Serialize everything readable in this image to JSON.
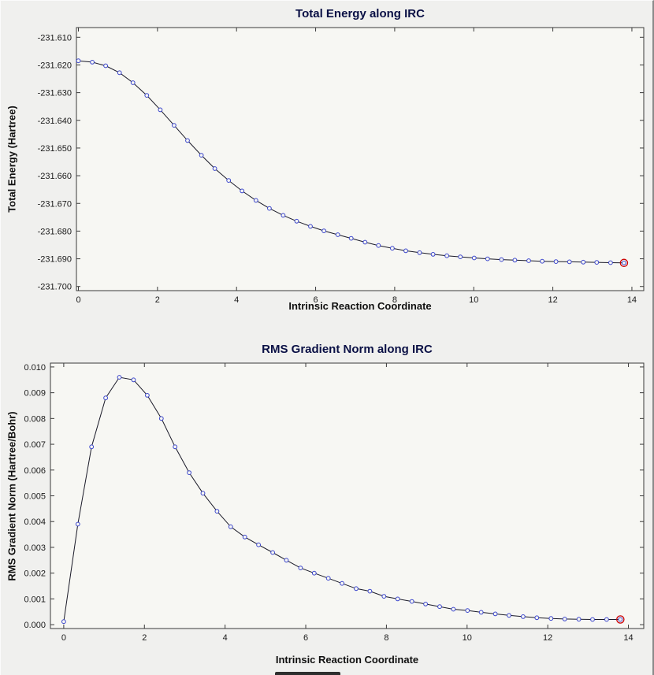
{
  "chart_data": [
    {
      "type": "line",
      "title": "Total Energy along IRC",
      "xlabel": "Intrinsic Reaction Coordinate",
      "ylabel": "Total Energy (Hartree)",
      "xlim": [
        -0.05,
        14.3
      ],
      "ylim": [
        -231.7015,
        -231.6065
      ],
      "xticks": [
        0,
        2,
        4,
        6,
        8,
        10,
        12,
        14
      ],
      "xtick_labels": [
        "0",
        "2",
        "4",
        "6",
        "8",
        "10",
        "12",
        "14"
      ],
      "yticks": [
        -231.61,
        -231.62,
        -231.63,
        -231.64,
        -231.65,
        -231.66,
        -231.67,
        -231.68,
        -231.69,
        -231.7
      ],
      "ytick_labels": [
        "-231.610",
        "-231.620",
        "-231.630",
        "-231.640",
        "-231.650",
        "-231.660",
        "-231.670",
        "-231.680",
        "-231.690",
        "-231.700"
      ],
      "grid": false,
      "legend": "none",
      "plot_bg": "#f7f7f3",
      "frame_color": "#3a3a3a",
      "line_color": "#1a1a28",
      "marker_color": "#3a45cc",
      "highlight_color": "#cc0000",
      "x": [
        0.0,
        0.35,
        0.69,
        1.04,
        1.38,
        1.73,
        2.07,
        2.42,
        2.76,
        3.11,
        3.45,
        3.8,
        4.14,
        4.49,
        4.83,
        5.18,
        5.52,
        5.87,
        6.21,
        6.56,
        6.9,
        7.25,
        7.59,
        7.94,
        8.28,
        8.63,
        8.97,
        9.32,
        9.66,
        10.01,
        10.35,
        10.7,
        11.04,
        11.39,
        11.73,
        12.08,
        12.42,
        12.77,
        13.11,
        13.46,
        13.8
      ],
      "y": [
        -231.6185,
        -231.619,
        -231.6203,
        -231.6228,
        -231.6264,
        -231.631,
        -231.6362,
        -231.6418,
        -231.6473,
        -231.6526,
        -231.6574,
        -231.6617,
        -231.6655,
        -231.6689,
        -231.6718,
        -231.6743,
        -231.6764,
        -231.6783,
        -231.6799,
        -231.6813,
        -231.6826,
        -231.684,
        -231.6852,
        -231.6862,
        -231.6871,
        -231.6878,
        -231.6884,
        -231.6889,
        -231.6893,
        -231.6897,
        -231.69,
        -231.6903,
        -231.6905,
        -231.6907,
        -231.6909,
        -231.691,
        -231.6911,
        -231.6912,
        -231.6913,
        -231.6914,
        -231.6915
      ]
    },
    {
      "type": "line",
      "title": "RMS Gradient Norm along IRC",
      "xlabel": "Intrinsic Reaction Coordinate",
      "ylabel": "RMS Gradient Norm (Hartree/Bohr)",
      "xlim": [
        -0.33,
        14.38
      ],
      "ylim": [
        -0.00015,
        0.01015
      ],
      "xticks": [
        0,
        2,
        4,
        6,
        8,
        10,
        12,
        14
      ],
      "xtick_labels": [
        "0",
        "2",
        "4",
        "6",
        "8",
        "10",
        "12",
        "14"
      ],
      "yticks": [
        0.0,
        0.001,
        0.002,
        0.003,
        0.004,
        0.005,
        0.006,
        0.007,
        0.008,
        0.009,
        0.01
      ],
      "ytick_labels": [
        "0.000",
        "0.001",
        "0.002",
        "0.003",
        "0.004",
        "0.005",
        "0.006",
        "0.007",
        "0.008",
        "0.009",
        "0.010"
      ],
      "grid": false,
      "legend": "none",
      "plot_bg": "#f7f7f3",
      "frame_color": "#3a3a3a",
      "line_color": "#1a1a28",
      "marker_color": "#3a45cc",
      "highlight_color": "#cc0000",
      "x": [
        0.0,
        0.35,
        0.69,
        1.04,
        1.38,
        1.73,
        2.07,
        2.42,
        2.76,
        3.11,
        3.45,
        3.8,
        4.14,
        4.49,
        4.83,
        5.18,
        5.52,
        5.87,
        6.21,
        6.56,
        6.9,
        7.25,
        7.59,
        7.94,
        8.28,
        8.63,
        8.97,
        9.32,
        9.66,
        10.01,
        10.35,
        10.7,
        11.04,
        11.39,
        11.73,
        12.08,
        12.42,
        12.77,
        13.11,
        13.46,
        13.8
      ],
      "y": [
        0.00012,
        0.0039,
        0.0069,
        0.0088,
        0.0096,
        0.0095,
        0.0089,
        0.008,
        0.0069,
        0.0059,
        0.0051,
        0.0044,
        0.0038,
        0.0034,
        0.0031,
        0.0028,
        0.0025,
        0.0022,
        0.002,
        0.0018,
        0.0016,
        0.0014,
        0.0013,
        0.0011,
        0.001,
        0.0009,
        0.0008,
        0.0007,
        0.0006,
        0.00055,
        0.00048,
        0.00042,
        0.00036,
        0.00031,
        0.00027,
        0.00024,
        0.00022,
        0.00021,
        0.0002,
        0.0002,
        0.0002
      ]
    }
  ]
}
